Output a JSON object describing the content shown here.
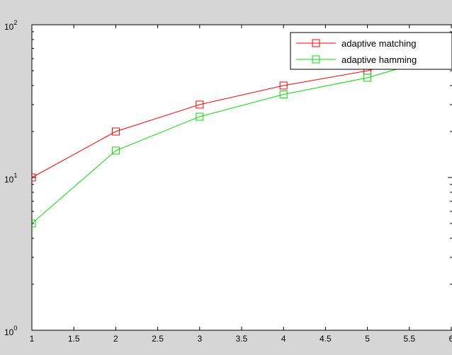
{
  "chart_data": {
    "type": "line",
    "title": "",
    "xlabel": "",
    "ylabel": "",
    "xscale": "linear",
    "yscale": "log",
    "xlim": [
      1,
      6
    ],
    "ylim": [
      1,
      100
    ],
    "grid": false,
    "legend_position": "top-right",
    "x_ticks": [
      "1",
      "1.5",
      "2",
      "2.5",
      "3",
      "3.5",
      "4",
      "4.5",
      "5",
      "5.5",
      "6"
    ],
    "y_ticks": [
      {
        "base": "10",
        "exp": "0",
        "value": 1
      },
      {
        "base": "10",
        "exp": "1",
        "value": 10
      },
      {
        "base": "10",
        "exp": "2",
        "value": 100
      }
    ],
    "series": [
      {
        "name": "adaptive matching",
        "color": "#ff0000",
        "marker": "square",
        "x": [
          1,
          2,
          3,
          4,
          5,
          6
        ],
        "y": [
          10,
          20,
          30,
          40,
          50,
          72
        ]
      },
      {
        "name": "adaptive hamming",
        "color": "#00e000",
        "marker": "square",
        "x": [
          1,
          2,
          3,
          4,
          5,
          6
        ],
        "y": [
          5,
          15,
          25,
          35,
          45,
          65
        ]
      }
    ]
  }
}
